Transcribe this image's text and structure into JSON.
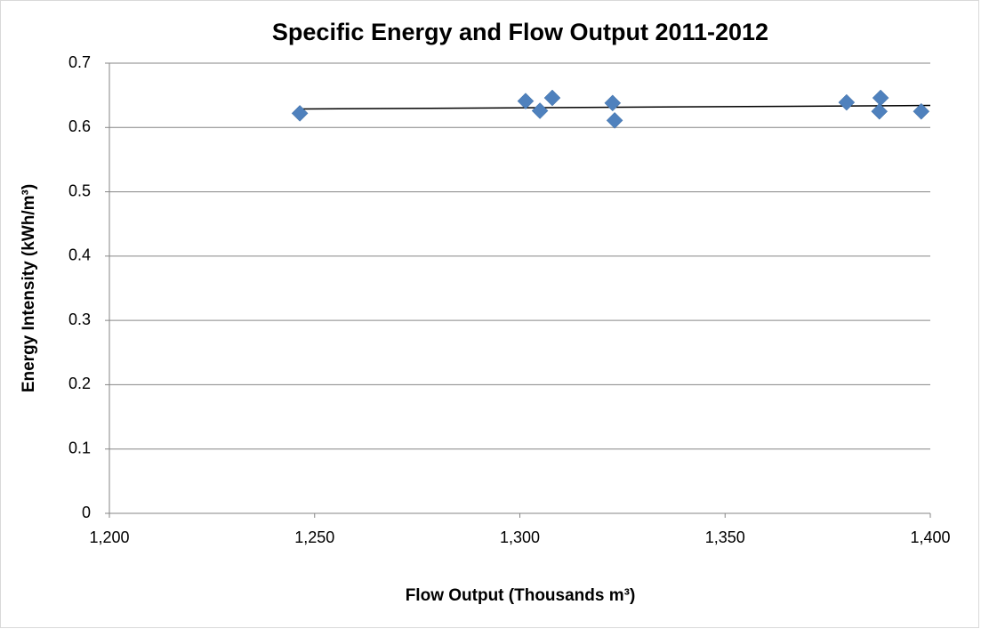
{
  "chart_data": {
    "type": "scatter",
    "title": "Specific Energy and Flow Output 2011-2012",
    "x_label": "Flow Output (Thousands m³)",
    "y_label": "Energy Intensity (kWh/m³)",
    "x": [
      1246.4,
      1301.4,
      1304.9,
      1307.9,
      1322.6,
      1323.1,
      1379.6,
      1387.9,
      1387.6,
      1397.8
    ],
    "values": [
      0.622,
      0.641,
      0.626,
      0.646,
      0.638,
      0.611,
      0.639,
      0.646,
      0.625,
      0.625
    ],
    "color": "#4f81bd",
    "trendline": "linear",
    "xlim": [
      1200,
      1400
    ],
    "xticks": [
      {
        "value": 1200,
        "label": "1,200"
      },
      {
        "value": 1250,
        "label": "1,250"
      },
      {
        "value": 1300,
        "label": "1,300"
      },
      {
        "value": 1350,
        "label": "1,350"
      },
      {
        "value": 1400,
        "label": "1,400"
      }
    ],
    "ylim": [
      0,
      0.7
    ],
    "yticks": [
      0,
      0.1,
      0.2,
      0.3,
      0.4,
      0.5,
      0.6,
      0.7
    ],
    "grid": true
  }
}
